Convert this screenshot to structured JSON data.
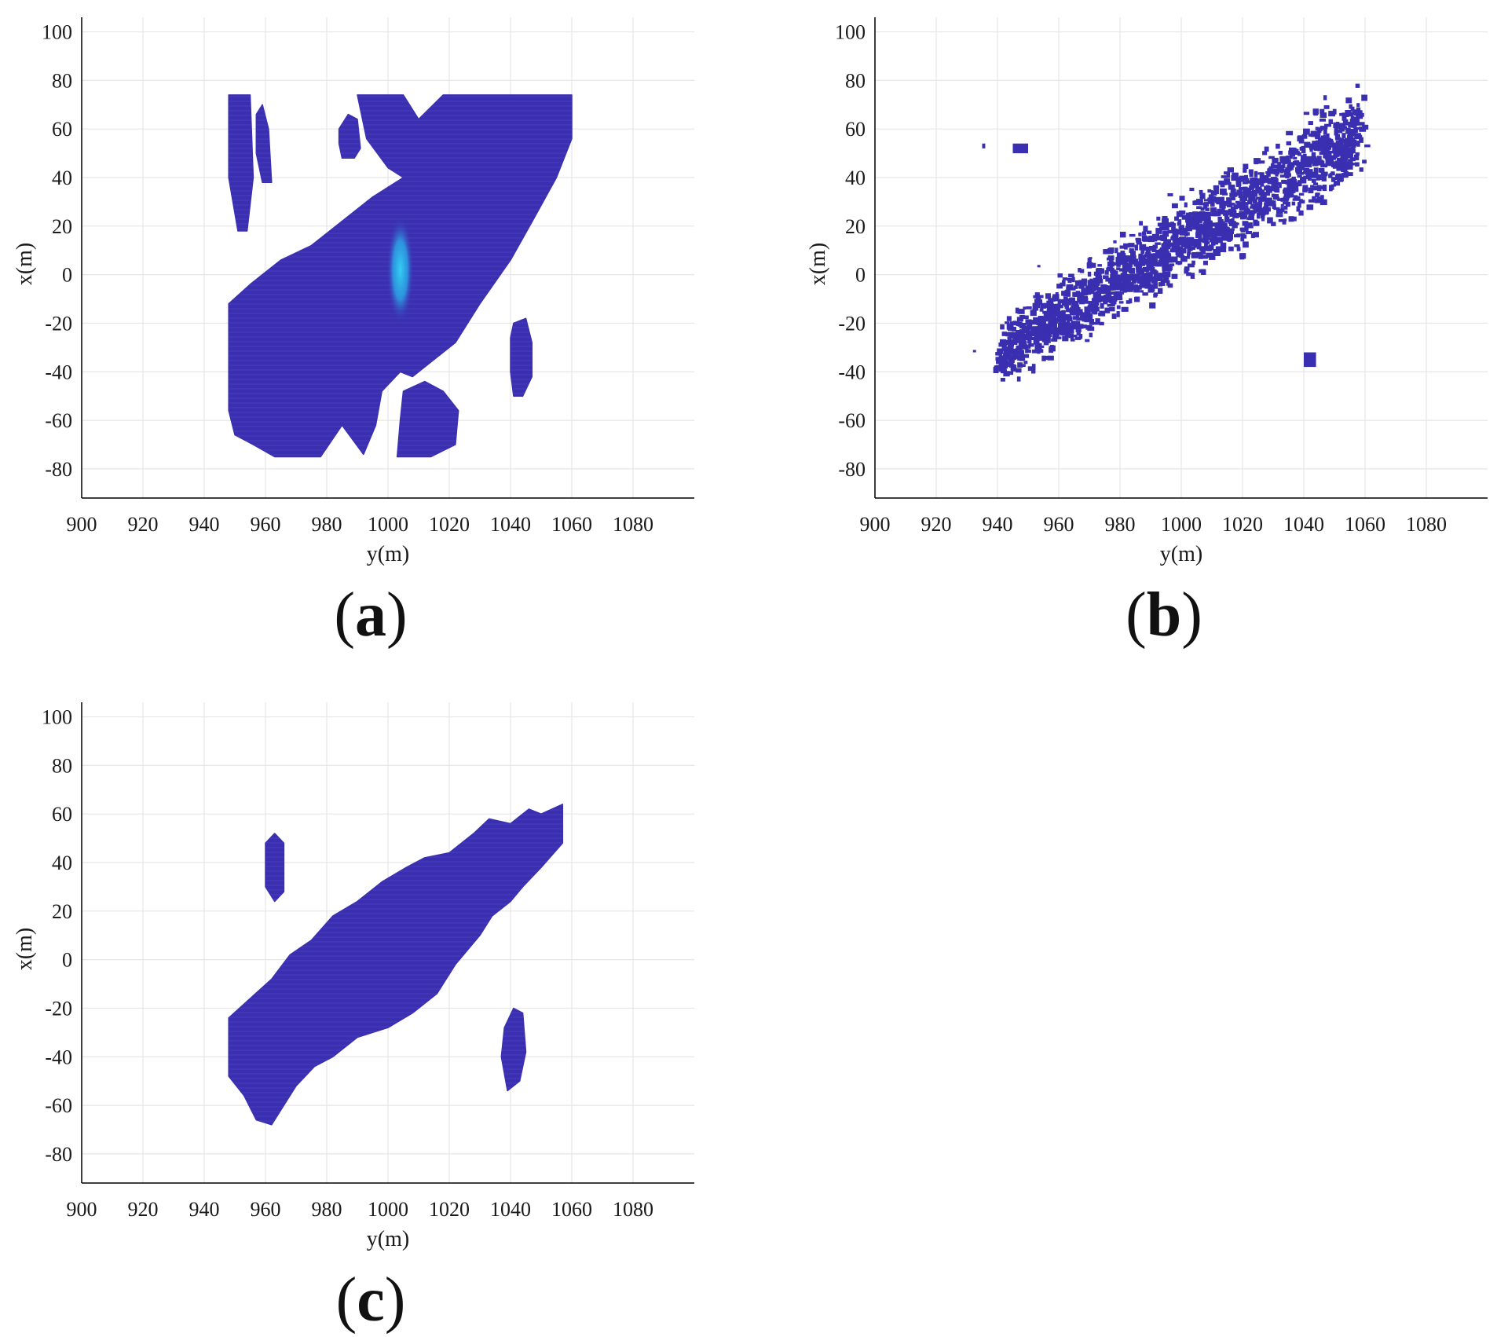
{
  "colors": {
    "blob": "#3a2fb0",
    "blob_light": "#5a4fd0",
    "highlight": "#2aa8e8",
    "highlight_core": "#34d0f0",
    "grid": "#e6e6e6",
    "axis": "#000000"
  },
  "chart_data": [
    {
      "panel_label": "a",
      "type": "scatter",
      "title": "",
      "xlabel": "y(m)",
      "ylabel": "x(m)",
      "xlim": [
        900,
        1100
      ],
      "ylim": [
        -92,
        106
      ],
      "xticks": [
        "900",
        "920",
        "940",
        "960",
        "980",
        "1000",
        "1020",
        "1040",
        "1060",
        "1080"
      ],
      "yticks": [
        "100",
        "80",
        "60",
        "40",
        "20",
        "0",
        "-20",
        "-40",
        "-60",
        "-80"
      ],
      "grid": true,
      "blobs": [
        {
          "name": "main-region",
          "outline": [
            [
              948,
              -56
            ],
            [
              948,
              -12
            ],
            [
              955,
              -4
            ],
            [
              965,
              6
            ],
            [
              975,
              12
            ],
            [
              985,
              22
            ],
            [
              995,
              32
            ],
            [
              1005,
              40
            ],
            [
              1000,
              44
            ],
            [
              993,
              56
            ],
            [
              990,
              74
            ],
            [
              1005,
              74
            ],
            [
              1010,
              64
            ],
            [
              1018,
              74
            ],
            [
              1060,
              74
            ],
            [
              1060,
              56
            ],
            [
              1055,
              40
            ],
            [
              1048,
              24
            ],
            [
              1040,
              6
            ],
            [
              1030,
              -12
            ],
            [
              1022,
              -28
            ],
            [
              1014,
              -36
            ],
            [
              1008,
              -42
            ],
            [
              1004,
              -40
            ],
            [
              998,
              -48
            ],
            [
              996,
              -62
            ],
            [
              992,
              -74
            ],
            [
              985,
              -62
            ],
            [
              978,
              -75
            ],
            [
              963,
              -75
            ],
            [
              956,
              -70
            ],
            [
              950,
              -66
            ]
          ]
        },
        {
          "name": "lower-right-bump",
          "outline": [
            [
              1005,
              -48
            ],
            [
              1012,
              -44
            ],
            [
              1018,
              -48
            ],
            [
              1023,
              -56
            ],
            [
              1022,
              -70
            ],
            [
              1014,
              -75
            ],
            [
              1003,
              -75
            ],
            [
              1004,
              -60
            ]
          ]
        },
        {
          "name": "left-strip-1",
          "outline": [
            [
              948,
              74
            ],
            [
              955,
              74
            ],
            [
              956,
              40
            ],
            [
              954,
              18
            ],
            [
              951,
              18
            ],
            [
              948,
              40
            ]
          ]
        },
        {
          "name": "left-strip-2",
          "outline": [
            [
              957,
              66
            ],
            [
              959,
              70
            ],
            [
              961,
              60
            ],
            [
              962,
              38
            ],
            [
              959,
              38
            ],
            [
              957,
              50
            ]
          ]
        },
        {
          "name": "upper-island",
          "outline": [
            [
              984,
              60
            ],
            [
              987,
              66
            ],
            [
              990,
              64
            ],
            [
              991,
              52
            ],
            [
              989,
              48
            ],
            [
              985,
              48
            ],
            [
              984,
              54
            ]
          ]
        },
        {
          "name": "right-island",
          "outline": [
            [
              1041,
              -20
            ],
            [
              1045,
              -18
            ],
            [
              1047,
              -28
            ],
            [
              1047,
              -42
            ],
            [
              1044,
              -50
            ],
            [
              1041,
              -50
            ],
            [
              1040,
              -40
            ],
            [
              1040,
              -26
            ]
          ]
        }
      ],
      "highlight": {
        "cx": 1004,
        "cy": 2,
        "rx": 2,
        "ry": 22
      }
    },
    {
      "panel_label": "b",
      "type": "scatter",
      "title": "",
      "xlabel": "y(m)",
      "ylabel": "x(m)",
      "xlim": [
        900,
        1100
      ],
      "ylim": [
        -92,
        106
      ],
      "xticks": [
        "900",
        "920",
        "940",
        "960",
        "980",
        "1000",
        "1020",
        "1040",
        "1060",
        "1080"
      ],
      "yticks": [
        "100",
        "80",
        "60",
        "40",
        "20",
        "0",
        "-20",
        "-40",
        "-60",
        "-80"
      ],
      "grid": true,
      "band": {
        "start": [
          940,
          -32
        ],
        "end": [
          1058,
          60
        ],
        "width_start": 18,
        "width_end": 26,
        "count": 2600
      },
      "islands": [
        {
          "x": 935,
          "y": 52,
          "w": 1,
          "h": 2
        },
        {
          "x": 945,
          "y": 50,
          "w": 5,
          "h": 4
        },
        {
          "x": 953,
          "y": 3,
          "w": 1,
          "h": 1
        },
        {
          "x": 932,
          "y": -32,
          "w": 1,
          "h": 1
        },
        {
          "x": 1040,
          "y": -38,
          "w": 4,
          "h": 6
        }
      ]
    },
    {
      "panel_label": "c",
      "type": "scatter",
      "title": "",
      "xlabel": "y(m)",
      "ylabel": "x(m)",
      "xlim": [
        900,
        1100
      ],
      "ylim": [
        -92,
        106
      ],
      "xticks": [
        "900",
        "920",
        "940",
        "960",
        "980",
        "1000",
        "1020",
        "1040",
        "1060",
        "1080"
      ],
      "yticks": [
        "100",
        "80",
        "60",
        "40",
        "20",
        "0",
        "-20",
        "-40",
        "-60",
        "-80"
      ],
      "grid": true,
      "blobs": [
        {
          "name": "diagonal-region",
          "outline": [
            [
              948,
              -48
            ],
            [
              948,
              -24
            ],
            [
              955,
              -16
            ],
            [
              962,
              -8
            ],
            [
              968,
              2
            ],
            [
              975,
              8
            ],
            [
              982,
              18
            ],
            [
              990,
              24
            ],
            [
              998,
              32
            ],
            [
              1006,
              38
            ],
            [
              1012,
              42
            ],
            [
              1020,
              44
            ],
            [
              1028,
              52
            ],
            [
              1033,
              58
            ],
            [
              1040,
              56
            ],
            [
              1046,
              62
            ],
            [
              1050,
              60
            ],
            [
              1057,
              64
            ],
            [
              1057,
              48
            ],
            [
              1050,
              38
            ],
            [
              1044,
              30
            ],
            [
              1040,
              24
            ],
            [
              1034,
              18
            ],
            [
              1030,
              10
            ],
            [
              1022,
              -2
            ],
            [
              1016,
              -14
            ],
            [
              1008,
              -22
            ],
            [
              1000,
              -28
            ],
            [
              990,
              -32
            ],
            [
              982,
              -40
            ],
            [
              976,
              -44
            ],
            [
              970,
              -52
            ],
            [
              966,
              -60
            ],
            [
              962,
              -68
            ],
            [
              957,
              -66
            ],
            [
              953,
              -56
            ]
          ]
        },
        {
          "name": "upper-island",
          "outline": [
            [
              960,
              48
            ],
            [
              963,
              52
            ],
            [
              966,
              48
            ],
            [
              966,
              28
            ],
            [
              963,
              24
            ],
            [
              960,
              30
            ]
          ]
        },
        {
          "name": "right-island",
          "outline": [
            [
              1038,
              -28
            ],
            [
              1041,
              -20
            ],
            [
              1044,
              -22
            ],
            [
              1045,
              -38
            ],
            [
              1043,
              -50
            ],
            [
              1039,
              -54
            ],
            [
              1037,
              -40
            ]
          ]
        }
      ]
    }
  ]
}
